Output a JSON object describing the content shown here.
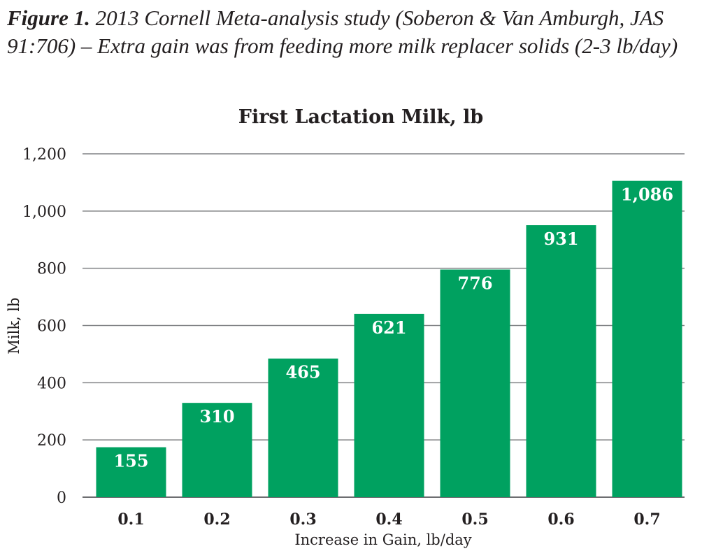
{
  "caption": {
    "label": "Figure 1.",
    "text": " 2013 Cornell Meta-analysis study (Soberon & Van Amburgh, JAS 91:706) – Extra gain was from feeding more milk replacer solids (2-3 lb/day)"
  },
  "chart_data": {
    "type": "bar",
    "title": "First Lactation Milk, lb",
    "xlabel": "Increase in Gain, lb/day",
    "ylabel": "Milk, lb",
    "categories": [
      "0.1",
      "0.2",
      "0.3",
      "0.4",
      "0.5",
      "0.6",
      "0.7"
    ],
    "values": [
      155,
      310,
      465,
      621,
      776,
      931,
      1086
    ],
    "data_labels": [
      "155",
      "310",
      "465",
      "621",
      "776",
      "931",
      "1,086"
    ],
    "ylim": [
      0,
      1200
    ],
    "yticks": [
      0,
      200,
      400,
      600,
      800,
      1000,
      1200
    ],
    "ytick_labels": [
      "0",
      "200",
      "400",
      "600",
      "800",
      "1,000",
      "1,200"
    ],
    "grid": true,
    "legend": "none",
    "bar_color": "#00a160"
  }
}
